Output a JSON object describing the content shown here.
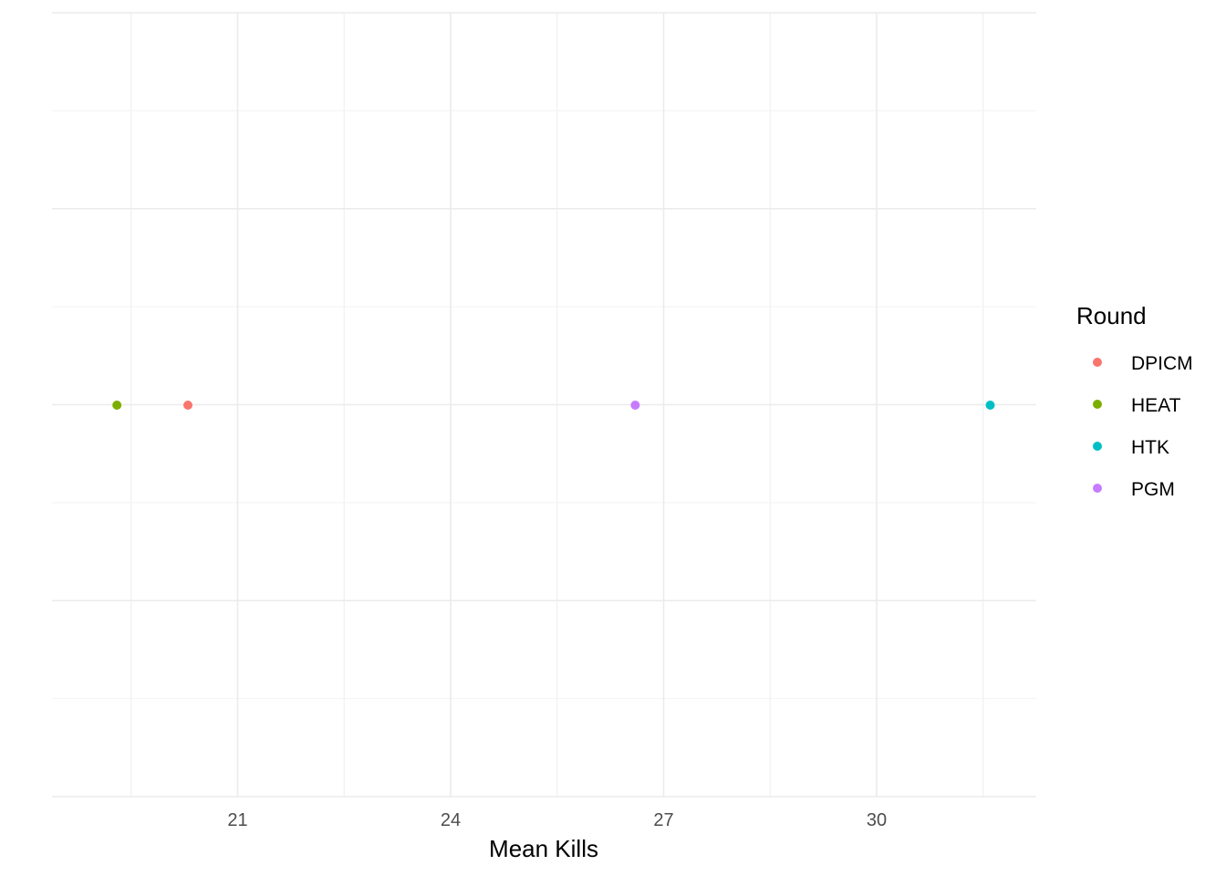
{
  "chart_data": {
    "type": "scatter",
    "xlabel": "Mean Kills",
    "ylabel": "",
    "xlim": [
      18.4,
      32.3
    ],
    "x_ticks": [
      21,
      24,
      27,
      30
    ],
    "x_tick_labels": [
      "21",
      "24",
      "27",
      "30"
    ],
    "grid": true,
    "legend": {
      "title": "Round",
      "placement": "right",
      "entries": [
        "DPICM",
        "HEAT",
        "HTK",
        "PGM"
      ]
    },
    "series": [
      {
        "name": "DPICM",
        "color": "#F8766D",
        "points": [
          {
            "x": 20.3
          }
        ]
      },
      {
        "name": "HEAT",
        "color": "#7CAE00",
        "points": [
          {
            "x": 19.3
          }
        ]
      },
      {
        "name": "HTK",
        "color": "#00BFC4",
        "points": [
          {
            "x": 31.6
          }
        ]
      },
      {
        "name": "PGM",
        "color": "#C77CFF",
        "points": [
          {
            "x": 26.6
          }
        ]
      }
    ]
  }
}
